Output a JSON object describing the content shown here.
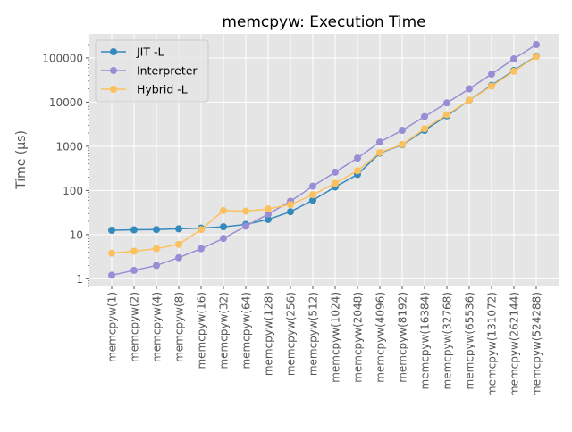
{
  "chart_data": {
    "type": "line",
    "title": "memcpyw: Execution Time",
    "xlabel": "",
    "ylabel": "Time (µs)",
    "yscale": "log",
    "ylim": [
      0.7,
      350000
    ],
    "grid": true,
    "legend_position": "top-left",
    "categories": [
      "memcpyw(1)",
      "memcpyw(2)",
      "memcpyw(4)",
      "memcpyw(8)",
      "memcpyw(16)",
      "memcpyw(32)",
      "memcpyw(64)",
      "memcpyw(128)",
      "memcpyw(256)",
      "memcpyw(512)",
      "memcpyw(1024)",
      "memcpyw(2048)",
      "memcpyw(4096)",
      "memcpyw(8192)",
      "memcpyw(16384)",
      "memcpyw(32768)",
      "memcpyw(65536)",
      "memcpyw(131072)",
      "memcpyw(262144)",
      "memcpyw(524288)"
    ],
    "y_ticks": [
      {
        "value": 1,
        "label": "1"
      },
      {
        "value": 10,
        "label": "10"
      },
      {
        "value": 100,
        "label": "100"
      },
      {
        "value": 1000,
        "label": "1000"
      },
      {
        "value": 10000,
        "label": "10000"
      },
      {
        "value": 100000,
        "label": "100000"
      }
    ],
    "series": [
      {
        "name": "JIT -L",
        "color": "#348abd",
        "values": [
          12.5,
          12.8,
          13,
          13.5,
          14,
          15,
          17,
          22,
          33,
          60,
          120,
          230,
          700,
          1080,
          2300,
          4900,
          11000,
          24000,
          52000,
          110000
        ]
      },
      {
        "name": "Interpreter",
        "color": "#988ed5",
        "values": [
          1.2,
          1.55,
          2.0,
          3.0,
          4.8,
          8.2,
          15.5,
          29,
          57,
          125,
          260,
          540,
          1250,
          2300,
          4700,
          9600,
          20000,
          43000,
          95000,
          200000
        ]
      },
      {
        "name": "Hybrid -L",
        "color": "#fbc15e",
        "values": [
          3.8,
          4.2,
          4.8,
          6.0,
          13,
          35,
          34,
          38,
          48,
          80,
          145,
          280,
          720,
          1100,
          2500,
          5200,
          11000,
          23000,
          50000,
          108000
        ]
      }
    ]
  }
}
